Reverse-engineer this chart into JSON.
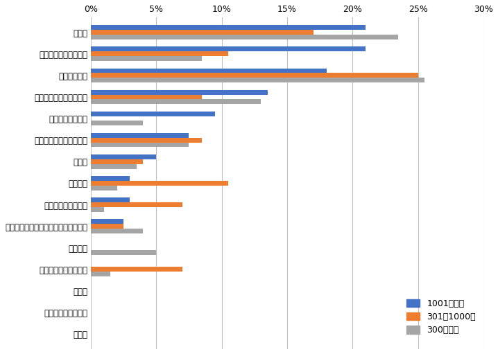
{
  "categories": [
    "部門間",
    "部署内のメンバー同士",
    "経営層と社員",
    "部署内の課長とメンバー",
    "テレワーク社員間",
    "部署内の部長とメンバー",
    "年代間",
    "事業所間",
    "部署内の部長と課長",
    "テレワーク社員とオフィス勤務社員間",
    "役員同士",
    "部署内外の管理職同士",
    "男女間",
    "正規・非正規社員間",
    "その他"
  ],
  "series": {
    "1001名以上": [
      21,
      21,
      18,
      13.5,
      9.5,
      7.5,
      5,
      3,
      3,
      2.5,
      0,
      0,
      0,
      0,
      0
    ],
    "301～1000名": [
      17,
      10.5,
      25,
      8.5,
      0,
      8.5,
      4,
      10.5,
      7,
      2.5,
      0,
      7,
      0,
      0,
      0
    ],
    "300名以下": [
      23.5,
      8.5,
      25.5,
      13,
      4,
      7.5,
      3.5,
      2,
      1,
      4,
      5,
      1.5,
      0,
      0,
      0
    ]
  },
  "colors": {
    "1001名以上": "#4472C4",
    "301～1000名": "#ED7D31",
    "300名以下": "#A5A5A5"
  },
  "xlim": [
    0,
    30
  ],
  "xticks": [
    0,
    5,
    10,
    15,
    20,
    25,
    30
  ],
  "xtick_labels": [
    "0%",
    "5%",
    "10%",
    "15%",
    "20%",
    "25%",
    "30%"
  ],
  "figsize": [
    7.18,
    5.11
  ],
  "dpi": 100,
  "bar_height": 0.22,
  "legend_labels": [
    "1001名以上",
    "301～1000名",
    "300名以下"
  ]
}
